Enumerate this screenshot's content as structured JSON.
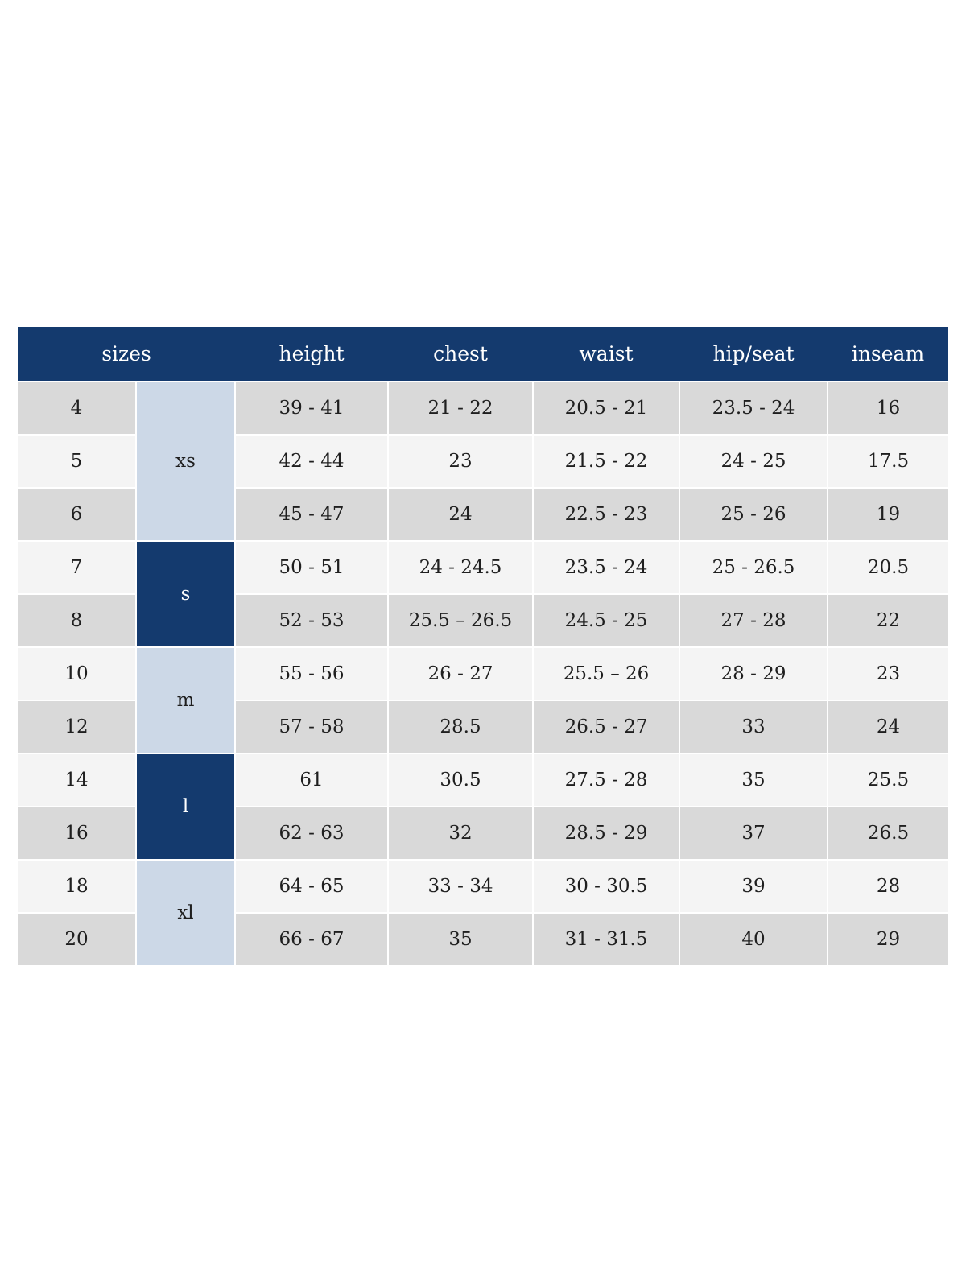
{
  "table": {
    "header": {
      "columns": [
        "sizes",
        "height",
        "chest",
        "waist",
        "hip/seat",
        "inseam"
      ]
    },
    "colors": {
      "header_bg": "#143a6e",
      "header_text": "#ffffff",
      "group_light_bg": "#ccd8e7",
      "group_dark_bg": "#143a6e",
      "group_dark_text": "#ffffff",
      "row_gray": "#d9d9d9",
      "row_light": "#f4f4f4",
      "cell_text": "#1f1f1f",
      "page_bg": "#ffffff"
    },
    "groups": [
      {
        "label": "xs",
        "tone": "light",
        "rows": [
          {
            "size": "4",
            "height": "39 - 41",
            "chest": "21 - 22",
            "waist": "20.5 - 21",
            "hip_seat": "23.5 - 24",
            "inseam": "16"
          },
          {
            "size": "5",
            "height": "42 - 44",
            "chest": "23",
            "waist": "21.5 - 22",
            "hip_seat": "24 - 25",
            "inseam": "17.5"
          },
          {
            "size": "6",
            "height": "45 - 47",
            "chest": "24",
            "waist": "22.5 - 23",
            "hip_seat": "25 - 26",
            "inseam": "19"
          }
        ]
      },
      {
        "label": "s",
        "tone": "dark",
        "rows": [
          {
            "size": "7",
            "height": "50 - 51",
            "chest": "24 - 24.5",
            "waist": "23.5 - 24",
            "hip_seat": "25 - 26.5",
            "inseam": "20.5"
          },
          {
            "size": "8",
            "height": "52 - 53",
            "chest": "25.5 – 26.5",
            "waist": "24.5 - 25",
            "hip_seat": "27 - 28",
            "inseam": "22"
          }
        ]
      },
      {
        "label": "m",
        "tone": "light",
        "rows": [
          {
            "size": "10",
            "height": "55 - 56",
            "chest": "26 - 27",
            "waist": "25.5 – 26",
            "hip_seat": "28 - 29",
            "inseam": "23"
          },
          {
            "size": "12",
            "height": "57 - 58",
            "chest": "28.5",
            "waist": "26.5 - 27",
            "hip_seat": "33",
            "inseam": "24"
          }
        ]
      },
      {
        "label": "l",
        "tone": "dark",
        "rows": [
          {
            "size": "14",
            "height": "61",
            "chest": "30.5",
            "waist": "27.5 - 28",
            "hip_seat": "35",
            "inseam": "25.5"
          },
          {
            "size": "16",
            "height": "62 - 63",
            "chest": "32",
            "waist": "28.5 - 29",
            "hip_seat": "37",
            "inseam": "26.5"
          }
        ]
      },
      {
        "label": "xl",
        "tone": "light",
        "rows": [
          {
            "size": "18",
            "height": "64 - 65",
            "chest": "33 - 34",
            "waist": "30 - 30.5",
            "hip_seat": "39",
            "inseam": "28"
          },
          {
            "size": "20",
            "height": "66 - 67",
            "chest": "35",
            "waist": "31 - 31.5",
            "hip_seat": "40",
            "inseam": "29"
          }
        ]
      }
    ]
  }
}
